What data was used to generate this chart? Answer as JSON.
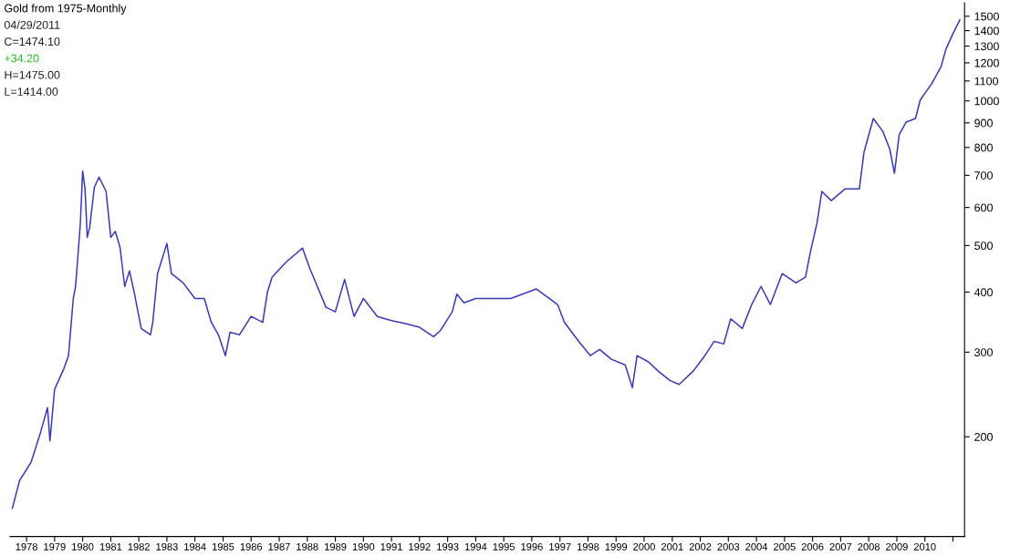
{
  "chart_data": {
    "type": "line",
    "title": "Gold from 1975-Monthly",
    "annotations": [
      "04/29/2011",
      "C=1474.10",
      "+34.20",
      "H=1475.00",
      "L=1414.00"
    ],
    "x": [
      "1977-07",
      "1977-10",
      "1978-03",
      "1978-07",
      "1978-10",
      "1978-11",
      "1979-01",
      "1979-05",
      "1979-07",
      "1979-09",
      "1979-10",
      "1979-12",
      "1980-01",
      "1980-02",
      "1980-03",
      "1980-04",
      "1980-06",
      "1980-08",
      "1980-11",
      "1981-01",
      "1981-03",
      "1981-05",
      "1981-07",
      "1981-09",
      "1981-11",
      "1982-02",
      "1982-06",
      "1982-07",
      "1982-09",
      "1983-01",
      "1983-03",
      "1983-08",
      "1984-01",
      "1984-05",
      "1984-08",
      "1984-11",
      "1985-02",
      "1985-04",
      "1985-08",
      "1986-01",
      "1986-06",
      "1986-08",
      "1986-10",
      "1987-04",
      "1987-11",
      "1988-02",
      "1988-09",
      "1989-01",
      "1989-05",
      "1989-09",
      "1990-01",
      "1990-07",
      "1991-01",
      "1991-07",
      "1992-01",
      "1992-07",
      "1992-10",
      "1993-03",
      "1993-05",
      "1993-08",
      "1994-01",
      "1995-01",
      "1995-04",
      "1996-03",
      "1996-12",
      "1997-03",
      "1997-09",
      "1998-02",
      "1998-06",
      "1998-11",
      "1999-05",
      "1999-08",
      "1999-10",
      "2000-03",
      "2000-07",
      "2000-12",
      "2001-04",
      "2001-10",
      "2002-03",
      "2002-07",
      "2002-11",
      "2003-02",
      "2003-07",
      "2003-11",
      "2004-03",
      "2004-07",
      "2004-12",
      "2005-06",
      "2005-10",
      "2005-12",
      "2006-03",
      "2006-05",
      "2006-09",
      "2007-03",
      "2007-09",
      "2007-11",
      "2008-03",
      "2008-07",
      "2008-10",
      "2008-12",
      "2009-02",
      "2009-05",
      "2009-09",
      "2009-11",
      "2010-04",
      "2010-08",
      "2010-10",
      "2011-01",
      "2011-04"
    ],
    "series": [
      {
        "color": "#3a3ab8",
        "values": [
          142,
          162,
          177,
          204,
          230,
          196,
          251,
          277,
          295,
          388,
          411,
          552,
          715,
          656,
          520,
          545,
          661,
          694,
          648,
          520,
          535,
          496,
          411,
          443,
          400,
          336,
          326,
          346,
          437,
          505,
          437,
          418,
          388,
          388,
          346,
          326,
          295,
          330,
          326,
          356,
          346,
          400,
          430,
          462,
          494,
          449,
          372,
          364,
          425,
          356,
          388,
          356,
          349,
          344,
          338,
          323,
          333,
          364,
          396,
          380,
          388,
          388,
          388,
          406,
          377,
          346,
          316,
          295,
          304,
          290,
          282,
          253,
          295,
          286,
          274,
          262,
          257,
          274,
          295,
          316,
          312,
          352,
          336,
          377,
          411,
          377,
          437,
          418,
          430,
          483,
          559,
          648,
          620,
          656,
          656,
          782,
          919,
          865,
          794,
          707,
          851,
          903,
          919,
          1004,
          1087,
          1180,
          1280,
          1380,
          1474.1
        ]
      }
    ],
    "log": "y",
    "ylim": [
      124,
      1600
    ],
    "yticks": [
      200,
      300,
      400,
      500,
      600,
      700,
      800,
      900,
      1000,
      1100,
      1200,
      1300,
      1400,
      1500
    ],
    "xlim": [
      "1977-06",
      "2011-06"
    ],
    "xticks": [
      {
        "value": "1978",
        "label": "1978"
      },
      {
        "value": "1979",
        "label": "1979"
      },
      {
        "value": "1980",
        "label": "1980"
      },
      {
        "value": "1981",
        "label": "1981"
      },
      {
        "value": "1982",
        "label": "1982"
      },
      {
        "value": "1983",
        "label": "1983"
      },
      {
        "value": "1984",
        "label": "1984"
      },
      {
        "value": "1985",
        "label": "1985"
      },
      {
        "value": "1986",
        "label": "1986"
      },
      {
        "value": "1987",
        "label": "1987"
      },
      {
        "value": "1988",
        "label": "1988"
      },
      {
        "value": "1989",
        "label": "1989"
      },
      {
        "value": "1990",
        "label": "1990"
      },
      {
        "value": "1991",
        "label": "1991"
      },
      {
        "value": "1992",
        "label": "1992"
      },
      {
        "value": "1993",
        "label": "1993"
      },
      {
        "value": "1994",
        "label": "1994"
      },
      {
        "value": "1995",
        "label": "1995"
      },
      {
        "value": "1996",
        "label": "1996"
      },
      {
        "value": "1997",
        "label": "1997"
      },
      {
        "value": "1998",
        "label": "1998"
      },
      {
        "value": "1999",
        "label": "1999"
      },
      {
        "value": "2000",
        "label": "2000"
      },
      {
        "value": "2001",
        "label": "2001"
      },
      {
        "value": "2002",
        "label": "2002"
      },
      {
        "value": "2003",
        "label": "2003"
      },
      {
        "value": "2004",
        "label": "2004"
      },
      {
        "value": "2005",
        "label": "2005"
      },
      {
        "value": "2006",
        "label": "2006"
      },
      {
        "value": "2007",
        "label": "2007"
      },
      {
        "value": "2008",
        "label": "2008"
      },
      {
        "value": "2009",
        "label": "2009"
      },
      {
        "value": "2010",
        "label": "2010"
      },
      {
        "value": "2011",
        "label": null
      }
    ],
    "grid": false,
    "legend": false,
    "marker": "none",
    "line_style": "solid"
  }
}
